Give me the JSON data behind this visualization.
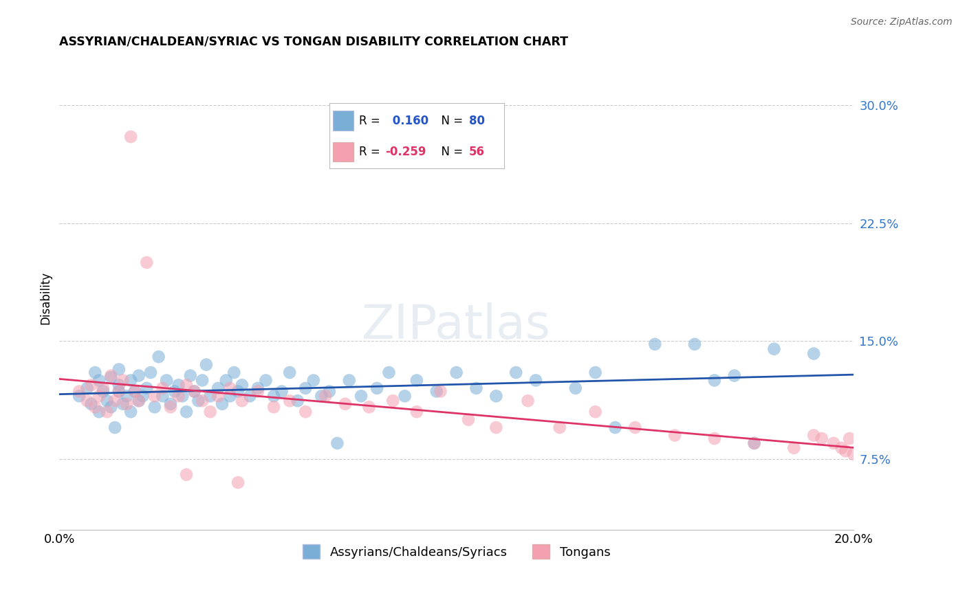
{
  "title": "ASSYRIAN/CHALDEAN/SYRIAC VS TONGAN DISABILITY CORRELATION CHART",
  "source": "Source: ZipAtlas.com",
  "ylabel": "Disability",
  "y_ticks": [
    0.075,
    0.15,
    0.225,
    0.3
  ],
  "y_tick_labels": [
    "7.5%",
    "15.0%",
    "22.5%",
    "30.0%"
  ],
  "x_range": [
    0.0,
    0.2
  ],
  "y_range": [
    0.03,
    0.325
  ],
  "blue_R": 0.16,
  "blue_N": 80,
  "pink_R": -0.259,
  "pink_N": 56,
  "blue_color": "#7aaed6",
  "pink_color": "#f4a0b0",
  "blue_line_color": "#2255aa",
  "pink_line_color": "#dd3366",
  "legend_label_blue": "Assyrians/Chaldeans/Syriacs",
  "legend_label_pink": "Tongans",
  "watermark": "ZIPatlas",
  "blue_x": [
    0.005,
    0.007,
    0.008,
    0.009,
    0.01,
    0.01,
    0.011,
    0.012,
    0.013,
    0.013,
    0.014,
    0.015,
    0.015,
    0.015,
    0.016,
    0.017,
    0.018,
    0.018,
    0.019,
    0.02,
    0.02,
    0.021,
    0.022,
    0.023,
    0.024,
    0.025,
    0.026,
    0.027,
    0.028,
    0.029,
    0.03,
    0.031,
    0.032,
    0.033,
    0.034,
    0.035,
    0.036,
    0.037,
    0.038,
    0.04,
    0.041,
    0.042,
    0.043,
    0.044,
    0.045,
    0.046,
    0.048,
    0.05,
    0.052,
    0.054,
    0.056,
    0.058,
    0.06,
    0.062,
    0.064,
    0.066,
    0.068,
    0.07,
    0.073,
    0.076,
    0.08,
    0.083,
    0.087,
    0.09,
    0.095,
    0.1,
    0.105,
    0.11,
    0.115,
    0.12,
    0.13,
    0.135,
    0.14,
    0.15,
    0.16,
    0.165,
    0.17,
    0.175,
    0.18,
    0.19
  ],
  "blue_y": [
    0.115,
    0.12,
    0.11,
    0.13,
    0.105,
    0.125,
    0.118,
    0.112,
    0.127,
    0.108,
    0.095,
    0.122,
    0.118,
    0.132,
    0.11,
    0.115,
    0.125,
    0.105,
    0.118,
    0.112,
    0.128,
    0.115,
    0.12,
    0.13,
    0.108,
    0.14,
    0.115,
    0.125,
    0.11,
    0.118,
    0.122,
    0.115,
    0.105,
    0.128,
    0.118,
    0.112,
    0.125,
    0.135,
    0.115,
    0.12,
    0.11,
    0.125,
    0.115,
    0.13,
    0.118,
    0.122,
    0.115,
    0.12,
    0.125,
    0.115,
    0.118,
    0.13,
    0.112,
    0.12,
    0.125,
    0.115,
    0.118,
    0.085,
    0.125,
    0.115,
    0.12,
    0.13,
    0.115,
    0.125,
    0.118,
    0.13,
    0.12,
    0.115,
    0.13,
    0.125,
    0.12,
    0.13,
    0.095,
    0.148,
    0.148,
    0.125,
    0.128,
    0.085,
    0.145,
    0.142
  ],
  "pink_x": [
    0.005,
    0.007,
    0.008,
    0.009,
    0.01,
    0.011,
    0.012,
    0.013,
    0.014,
    0.015,
    0.016,
    0.017,
    0.018,
    0.019,
    0.02,
    0.022,
    0.024,
    0.026,
    0.028,
    0.03,
    0.032,
    0.034,
    0.036,
    0.038,
    0.04,
    0.043,
    0.046,
    0.05,
    0.054,
    0.058,
    0.062,
    0.067,
    0.072,
    0.078,
    0.084,
    0.09,
    0.096,
    0.103,
    0.11,
    0.118,
    0.126,
    0.135,
    0.145,
    0.155,
    0.165,
    0.175,
    0.185,
    0.19,
    0.192,
    0.195,
    0.197,
    0.198,
    0.199,
    0.2,
    0.032,
    0.045
  ],
  "pink_y": [
    0.118,
    0.112,
    0.122,
    0.108,
    0.115,
    0.12,
    0.105,
    0.128,
    0.112,
    0.118,
    0.125,
    0.11,
    0.28,
    0.118,
    0.112,
    0.2,
    0.115,
    0.12,
    0.108,
    0.115,
    0.122,
    0.118,
    0.112,
    0.105,
    0.115,
    0.12,
    0.112,
    0.118,
    0.108,
    0.112,
    0.105,
    0.115,
    0.11,
    0.108,
    0.112,
    0.105,
    0.118,
    0.1,
    0.095,
    0.112,
    0.095,
    0.105,
    0.095,
    0.09,
    0.088,
    0.085,
    0.082,
    0.09,
    0.088,
    0.085,
    0.082,
    0.08,
    0.088,
    0.078,
    0.065,
    0.06
  ]
}
